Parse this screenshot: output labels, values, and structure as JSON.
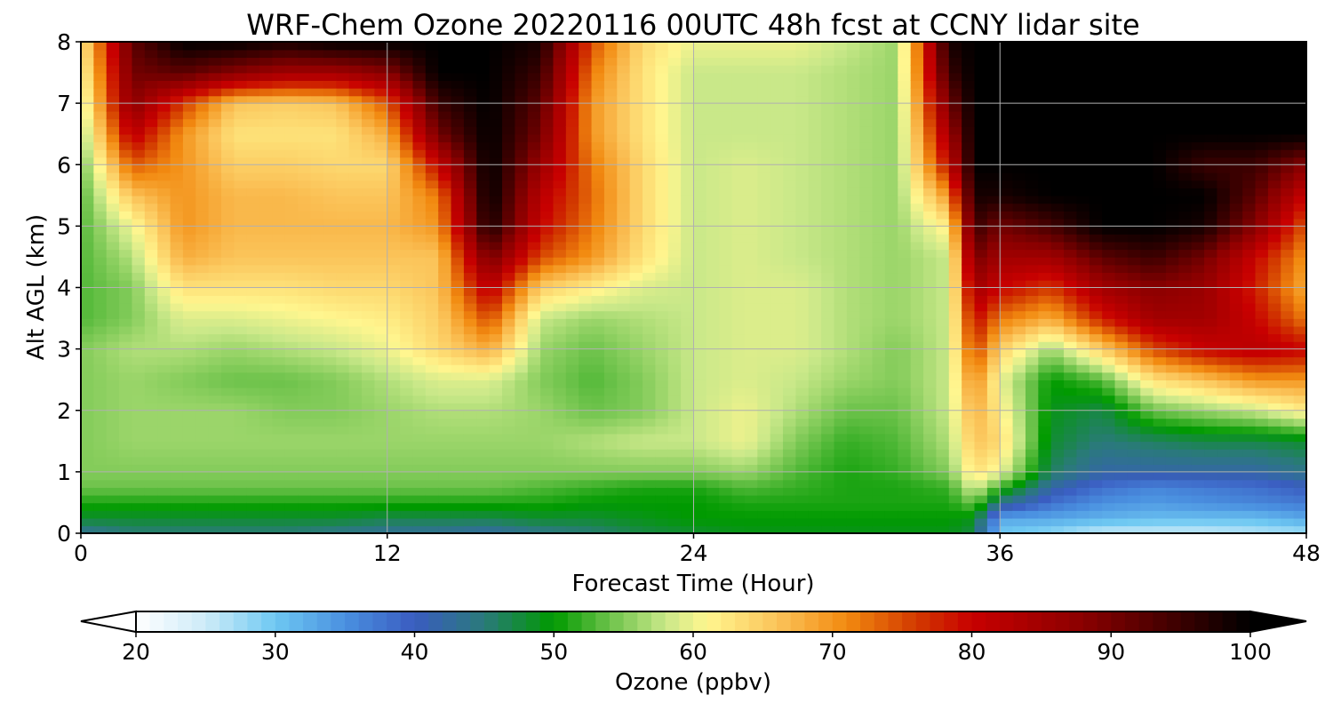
{
  "chart_data": {
    "type": "heatmap",
    "title": "WRF-Chem Ozone  20220116 00UTC 48h fcst at CCNY lidar site",
    "xlabel": "Forecast Time (Hour)",
    "ylabel": "Alt AGL (km)",
    "xlim": [
      0,
      48
    ],
    "ylim": [
      0,
      8
    ],
    "xticks": [
      0,
      12,
      24,
      36,
      48
    ],
    "yticks": [
      0,
      1,
      2,
      3,
      4,
      5,
      6,
      7,
      8
    ],
    "grid": true,
    "colorbar": {
      "label": "Ozone  (ppbv)",
      "range": [
        20,
        100
      ],
      "ticks": [
        20,
        30,
        40,
        50,
        60,
        70,
        80,
        90,
        100
      ],
      "extend": "both",
      "colors": [
        {
          "v": 20,
          "c": "#ffffff"
        },
        {
          "v": 25,
          "c": "#cdebf8"
        },
        {
          "v": 30,
          "c": "#6ec8f2"
        },
        {
          "v": 35,
          "c": "#4a90e0"
        },
        {
          "v": 40,
          "c": "#3a5cc0"
        },
        {
          "v": 45,
          "c": "#2a7a7a"
        },
        {
          "v": 50,
          "c": "#009a00"
        },
        {
          "v": 54,
          "c": "#6cc24a"
        },
        {
          "v": 58,
          "c": "#c9e889"
        },
        {
          "v": 61,
          "c": "#fff68f"
        },
        {
          "v": 66,
          "c": "#fbc45a"
        },
        {
          "v": 71,
          "c": "#f28a10"
        },
        {
          "v": 76,
          "c": "#d23a00"
        },
        {
          "v": 80,
          "c": "#c80000"
        },
        {
          "v": 88,
          "c": "#8a0000"
        },
        {
          "v": 95,
          "c": "#3a0000"
        },
        {
          "v": 100,
          "c": "#000000"
        }
      ]
    },
    "x_hours": [
      0,
      2,
      4,
      6,
      8,
      10,
      12,
      14,
      16,
      18,
      20,
      22,
      24,
      26,
      28,
      30,
      32,
      34,
      35,
      36,
      38,
      40,
      42,
      44,
      46,
      48
    ],
    "z_km": [
      0,
      0.25,
      0.5,
      0.75,
      1,
      1.5,
      2,
      2.5,
      3,
      3.5,
      4,
      4.5,
      5,
      5.5,
      6,
      6.5,
      7,
      7.5,
      8
    ],
    "ozone_ppbv": [
      [
        43,
        45,
        45,
        45,
        45,
        44,
        43,
        43,
        42,
        44,
        45,
        47,
        48,
        49,
        49,
        49,
        49,
        49,
        47,
        30,
        28,
        25,
        25,
        25,
        26,
        27
      ],
      [
        48,
        48,
        48,
        48,
        48,
        48,
        47,
        47,
        47,
        48,
        48,
        49,
        50,
        50,
        50,
        50,
        50,
        50,
        49,
        33,
        33,
        32,
        31,
        31,
        31,
        33
      ],
      [
        51,
        51,
        51,
        51,
        51,
        51,
        51,
        51,
        51,
        51,
        50,
        50,
        50,
        51,
        51,
        51,
        51,
        51,
        54,
        44,
        38,
        35,
        34,
        35,
        36,
        37
      ],
      [
        54,
        54,
        54,
        54,
        54,
        54,
        54,
        54,
        54,
        53,
        52,
        51,
        51,
        53,
        52,
        51,
        51,
        52,
        59,
        52,
        42,
        38,
        36,
        37,
        38,
        40
      ],
      [
        55,
        55,
        55,
        55,
        55,
        55,
        55,
        55,
        55,
        55,
        55,
        55,
        55,
        56,
        53,
        51,
        52,
        55,
        63,
        60,
        46,
        42,
        42,
        42,
        42,
        44
      ],
      [
        55,
        56,
        56,
        56,
        56,
        56,
        56,
        56,
        56,
        56,
        57,
        58,
        58,
        60,
        55,
        52,
        53,
        57,
        66,
        64,
        48,
        45,
        46,
        47,
        47,
        48
      ],
      [
        55,
        56,
        56,
        56,
        55,
        55,
        56,
        57,
        57,
        56,
        54,
        55,
        58,
        60,
        57,
        54,
        54,
        58,
        68,
        62,
        49,
        47,
        54,
        56,
        58,
        62
      ],
      [
        55,
        56,
        55,
        54,
        54,
        55,
        57,
        59,
        59,
        55,
        53,
        55,
        58,
        59,
        58,
        56,
        55,
        58,
        71,
        60,
        50,
        53,
        63,
        66,
        70,
        70
      ],
      [
        55,
        57,
        57,
        56,
        57,
        58,
        60,
        64,
        68,
        56,
        54,
        56,
        58,
        59,
        59,
        57,
        55,
        58,
        76,
        65,
        56,
        65,
        75,
        80,
        82,
        80
      ],
      [
        53,
        55,
        59,
        59,
        60,
        61,
        62,
        65,
        75,
        58,
        56,
        57,
        58,
        59,
        59,
        57,
        56,
        58,
        80,
        72,
        68,
        78,
        85,
        85,
        80,
        72
      ],
      [
        53,
        55,
        63,
        63,
        63,
        64,
        64,
        66,
        82,
        65,
        62,
        59,
        58,
        59,
        59,
        57,
        56,
        58,
        85,
        80,
        76,
        85,
        88,
        86,
        78,
        68
      ],
      [
        53,
        57,
        68,
        66,
        66,
        66,
        66,
        66,
        90,
        75,
        70,
        63,
        58,
        59,
        58,
        57,
        56,
        58,
        90,
        85,
        85,
        92,
        95,
        90,
        80,
        70
      ],
      [
        53,
        60,
        70,
        67,
        67,
        67,
        67,
        70,
        98,
        80,
        72,
        64,
        58,
        59,
        58,
        57,
        56,
        62,
        95,
        90,
        94,
        100,
        100,
        98,
        88,
        74
      ],
      [
        53,
        66,
        70,
        67,
        67,
        66,
        66,
        72,
        100,
        82,
        73,
        64,
        58,
        59,
        58,
        57,
        56,
        70,
        98,
        98,
        100,
        100,
        100,
        100,
        92,
        80
      ],
      [
        54,
        74,
        70,
        65,
        65,
        64,
        64,
        80,
        100,
        86,
        72,
        64,
        58,
        59,
        58,
        57,
        56,
        80,
        100,
        100,
        100,
        100,
        100,
        95,
        95,
        88
      ],
      [
        56,
        82,
        70,
        63,
        63,
        63,
        68,
        90,
        100,
        90,
        70,
        63,
        58,
        58,
        58,
        57,
        56,
        85,
        100,
        100,
        100,
        100,
        100,
        100,
        100,
        100
      ],
      [
        58,
        88,
        76,
        66,
        65,
        66,
        74,
        95,
        100,
        92,
        70,
        63,
        58,
        58,
        58,
        57,
        56,
        90,
        100,
        100,
        100,
        100,
        100,
        100,
        100,
        100
      ],
      [
        60,
        90,
        92,
        88,
        85,
        85,
        88,
        100,
        100,
        95,
        72,
        63,
        58,
        58,
        58,
        57,
        56,
        95,
        100,
        100,
        100,
        100,
        100,
        100,
        100,
        100
      ],
      [
        62,
        92,
        100,
        100,
        98,
        100,
        100,
        100,
        100,
        98,
        75,
        64,
        60,
        60,
        60,
        58,
        56,
        98,
        100,
        100,
        100,
        100,
        100,
        100,
        100,
        100
      ]
    ]
  }
}
